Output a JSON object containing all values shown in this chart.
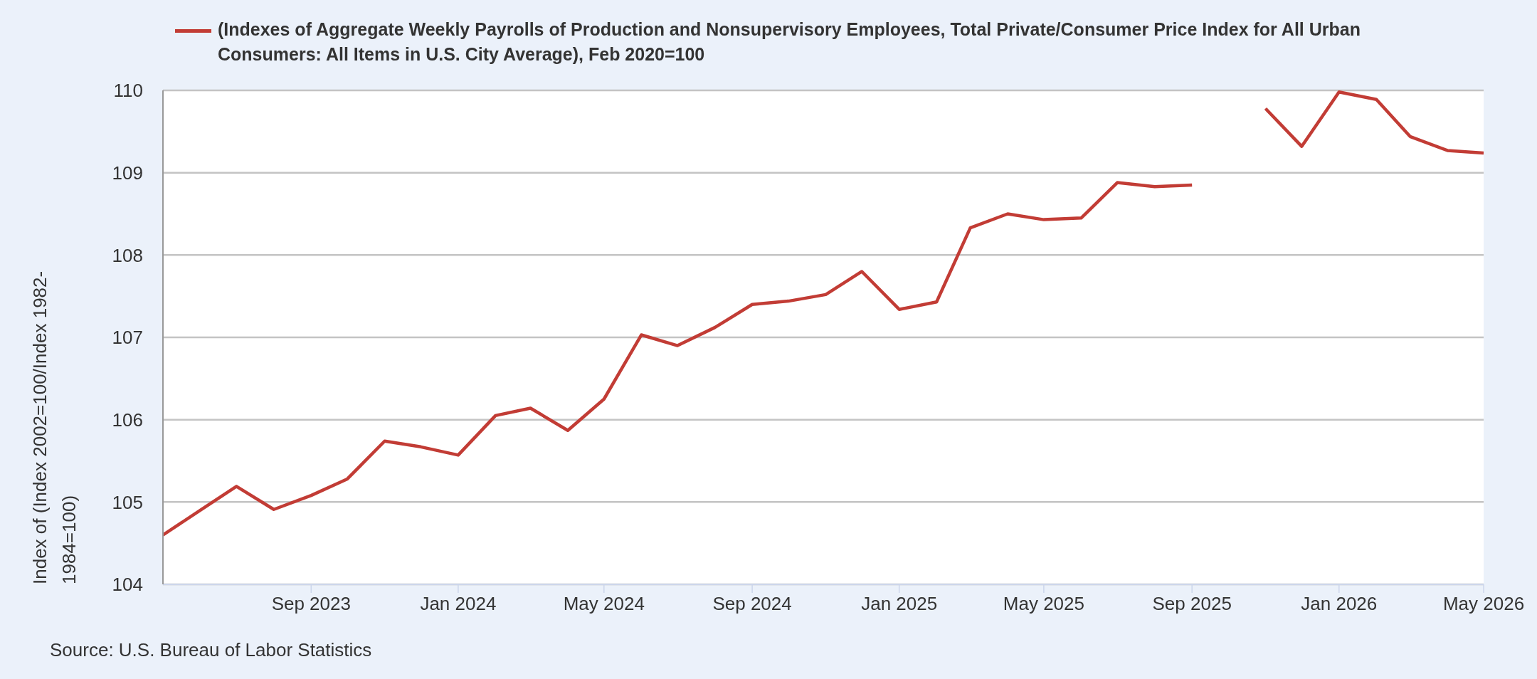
{
  "chart_data": {
    "type": "line",
    "ylabel": "Index of (Index 2002=100/Index 1982-1984=100)",
    "x": [
      "2023-05",
      "2023-06",
      "2023-07",
      "2023-08",
      "2023-09",
      "2023-10",
      "2023-11",
      "2023-12",
      "2024-01",
      "2024-02",
      "2024-03",
      "2024-04",
      "2024-05",
      "2024-06",
      "2024-07",
      "2024-08",
      "2024-09",
      "2024-10",
      "2024-11",
      "2024-12",
      "2025-01",
      "2025-02",
      "2025-03",
      "2025-04",
      "2025-05",
      "2025-06",
      "2025-07",
      "2025-08",
      "2025-09",
      "2025-10",
      "2025-11",
      "2025-12",
      "2026-01",
      "2026-02",
      "2026-03",
      "2026-04",
      "2026-05"
    ],
    "series": [
      {
        "name": "(Indexes of Aggregate Weekly Payrolls of Production and Nonsupervisory Employees, Total Private/Consumer Price Index for All Urban Consumers: All Items in U.S. City Average), Feb 2020=100",
        "color": "#c23c35",
        "values": [
          104.6,
          104.9,
          105.19,
          104.91,
          105.08,
          105.28,
          105.74,
          105.67,
          105.57,
          106.05,
          106.14,
          105.87,
          106.25,
          107.03,
          106.9,
          107.12,
          107.4,
          107.44,
          107.52,
          107.8,
          107.34,
          107.43,
          108.33,
          108.5,
          108.43,
          108.45,
          108.88,
          108.83,
          108.85,
          null,
          109.78,
          109.32,
          109.98,
          109.89,
          109.44,
          109.27,
          109.24
        ]
      }
    ],
    "xlim": [
      "2023-05",
      "2026-05"
    ],
    "xticks": [
      {
        "value": "2023-09",
        "label": "Sep 2023"
      },
      {
        "value": "2024-01",
        "label": "Jan 2024"
      },
      {
        "value": "2024-05",
        "label": "May 2024"
      },
      {
        "value": "2024-09",
        "label": "Sep 2024"
      },
      {
        "value": "2025-01",
        "label": "Jan 2025"
      },
      {
        "value": "2025-05",
        "label": "May 2025"
      },
      {
        "value": "2025-09",
        "label": "Sep 2025"
      },
      {
        "value": "2026-01",
        "label": "Jan 2026"
      },
      {
        "value": "2026-05",
        "label": "May 2026"
      }
    ],
    "ylim": [
      104,
      110
    ],
    "yticks": [
      104,
      105,
      106,
      107,
      108,
      109,
      110
    ],
    "grid": "y",
    "legend": "top",
    "line_style": "solid",
    "annotations": [
      "Source: U.S. Bureau of Labor Statistics"
    ]
  }
}
